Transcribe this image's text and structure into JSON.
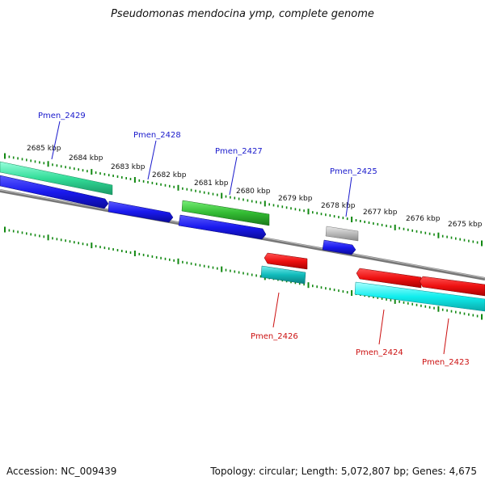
{
  "title": "Pseudomonas mendocina ymp, complete genome",
  "footer": {
    "accession": "Accession: NC_009439",
    "summary": "Topology: circular; Length: 5,072,807 bp; Genes: 4,675"
  },
  "scale_labels": [
    "2685 kbp",
    "2684 kbp",
    "2683 kbp",
    "2682 kbp",
    "2681 kbp",
    "2680 kbp",
    "2679 kbp",
    "2678 kbp",
    "2677 kbp",
    "2676 kbp",
    "2675 kbp"
  ],
  "genes": [
    {
      "label": "Pmen_2429",
      "strand": "forward",
      "label_color": "#1a1acc"
    },
    {
      "label": "Pmen_2428",
      "strand": "forward",
      "label_color": "#1a1acc"
    },
    {
      "label": "Pmen_2427",
      "strand": "forward",
      "label_color": "#1a1acc"
    },
    {
      "label": "Pmen_2425",
      "strand": "forward",
      "label_color": "#1a1acc"
    },
    {
      "label": "Pmen_2426",
      "strand": "reverse",
      "label_color": "#cc1111"
    },
    {
      "label": "Pmen_2424",
      "strand": "reverse",
      "label_color": "#cc1111"
    },
    {
      "label": "Pmen_2423",
      "strand": "reverse",
      "label_color": "#cc1111"
    }
  ],
  "colors": {
    "forward_cds": "#1a1aee",
    "reverse_cds": "#ee1111",
    "forward_gc": "#33dd99",
    "green_track": "#33bb33",
    "grey_track": "#aaaaaa",
    "teal_track": "#11bbbb",
    "cyan_track": "#11eeee",
    "backbone": "#888888",
    "tick": "#118811"
  }
}
